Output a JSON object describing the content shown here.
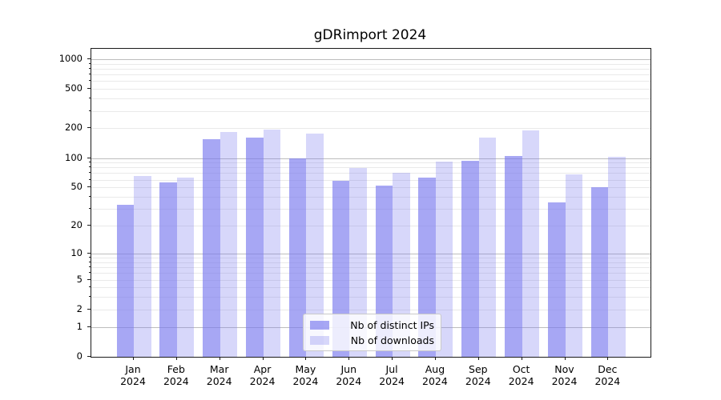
{
  "title": "gDRimport 2024",
  "colors": {
    "bar_base": "#7a7aee",
    "ips_alpha": 0.66,
    "downloads_alpha": 0.3,
    "ips_flat": "#a9a9f4",
    "downloads_flat": "#d8d8f8",
    "grid_major": "#bdbdbd",
    "grid_minor": "#e9e9e9",
    "axis": "#1a1a1a",
    "background": "#ffffff"
  },
  "y_axis": {
    "ticks": [
      0,
      1,
      2,
      5,
      10,
      20,
      50,
      100,
      200,
      500,
      1000
    ]
  },
  "x_axis": {
    "year": "2024",
    "months": [
      "Jan",
      "Feb",
      "Mar",
      "Apr",
      "May",
      "Jun",
      "Jul",
      "Aug",
      "Sep",
      "Oct",
      "Nov",
      "Dec"
    ]
  },
  "legend": {
    "items": [
      {
        "label": "Nb of distinct IPs",
        "series": "ips"
      },
      {
        "label": "Nb of downloads",
        "series": "downloads"
      }
    ]
  },
  "chart_data": {
    "type": "bar",
    "title": "gDRimport 2024",
    "categories": [
      "Jan 2024",
      "Feb 2024",
      "Mar 2024",
      "Apr 2024",
      "May 2024",
      "Jun 2024",
      "Jul 2024",
      "Aug 2024",
      "Sep 2024",
      "Oct 2024",
      "Nov 2024",
      "Dec 2024"
    ],
    "series": [
      {
        "name": "Nb of distinct IPs",
        "values": [
          33,
          56,
          155,
          160,
          100,
          58,
          52,
          63,
          93,
          104,
          35,
          50
        ]
      },
      {
        "name": "Nb of downloads",
        "values": [
          65,
          63,
          185,
          195,
          178,
          79,
          71,
          92,
          160,
          192,
          68,
          103
        ]
      }
    ],
    "xlabel": "",
    "ylabel": "",
    "yscale": "log10(1+y)",
    "ylim": [
      0,
      1280
    ],
    "yticks": [
      0,
      1,
      2,
      5,
      10,
      20,
      50,
      100,
      200,
      500,
      1000
    ],
    "grid": true,
    "legend_position": "lower center"
  }
}
